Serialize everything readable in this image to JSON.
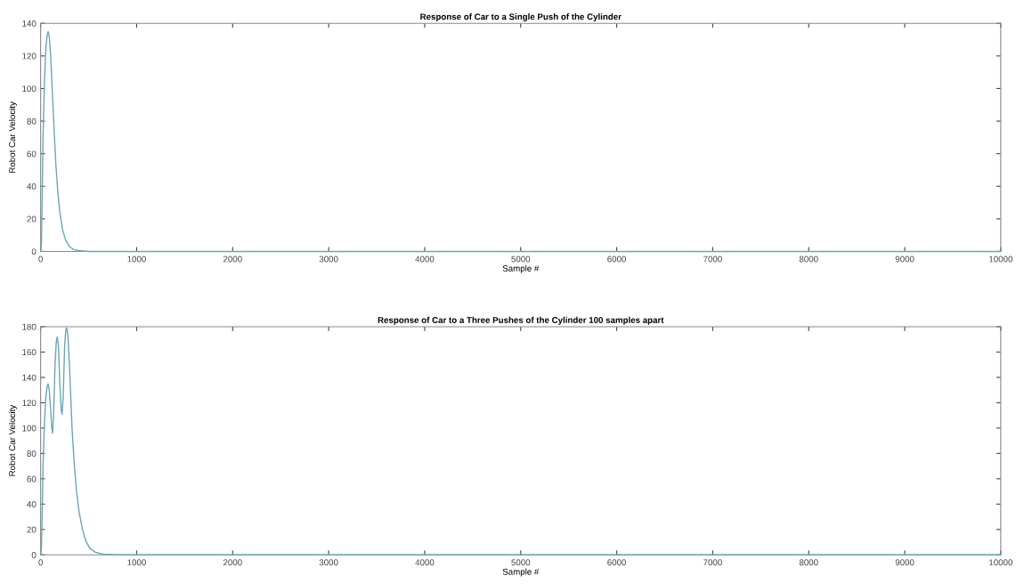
{
  "chart_data": [
    {
      "type": "line",
      "title": "Response of Car to a Single Push of the Cylinder",
      "xlabel": "Sample #",
      "ylabel": "Robot Car Velocity",
      "xlim": [
        0,
        10000
      ],
      "xticks": [
        0,
        1000,
        2000,
        3000,
        4000,
        5000,
        6000,
        7000,
        8000,
        9000,
        10000
      ],
      "ylim": [
        0,
        140
      ],
      "yticks": [
        0,
        20,
        40,
        60,
        80,
        100,
        120,
        140
      ],
      "grid": false,
      "series": [
        {
          "color": "#6aa7b3",
          "x": [
            0,
            8,
            15,
            25,
            40,
            55,
            68,
            78,
            90,
            105,
            120,
            140,
            160,
            180,
            200,
            230,
            260,
            300,
            350,
            400,
            500,
            700,
            1000,
            10000
          ],
          "values": [
            0,
            5,
            30,
            70,
            105,
            125,
            133,
            135,
            132,
            120,
            100,
            75,
            52,
            36,
            24,
            13,
            7,
            3,
            1,
            0.5,
            0,
            0,
            0,
            0
          ]
        }
      ]
    },
    {
      "type": "line",
      "title": "Response of Car to a Three Pushes of the Cylinder 100 samples apart",
      "xlabel": "Sample #",
      "ylabel": "Robot Car Velocity",
      "xlim": [
        0,
        10000
      ],
      "xticks": [
        0,
        1000,
        2000,
        3000,
        4000,
        5000,
        6000,
        7000,
        8000,
        9000,
        10000
      ],
      "ylim": [
        0,
        180
      ],
      "yticks": [
        0,
        20,
        40,
        60,
        80,
        100,
        120,
        140,
        160,
        180
      ],
      "grid": false,
      "series": [
        {
          "color": "#6aa7b3",
          "x": [
            0,
            8,
            15,
            25,
            40,
            55,
            68,
            78,
            90,
            105,
            115,
            124,
            135,
            150,
            163,
            172,
            185,
            200,
            215,
            224,
            235,
            250,
            262,
            267,
            271,
            276,
            285,
            300,
            327,
            350,
            374,
            400,
            436,
            470,
            514,
            570,
            650,
            800,
            1000,
            10000
          ],
          "values": [
            0,
            5,
            30,
            70,
            105,
            125,
            133,
            135,
            130,
            113,
            101,
            96,
            110,
            150,
            168,
            172,
            165,
            135,
            114,
            111,
            125,
            165,
            177,
            178.5,
            179,
            178,
            172,
            150,
            100,
            72,
            50,
            34,
            20,
            11,
            5,
            2,
            0.5,
            0,
            0,
            0
          ]
        }
      ]
    }
  ]
}
